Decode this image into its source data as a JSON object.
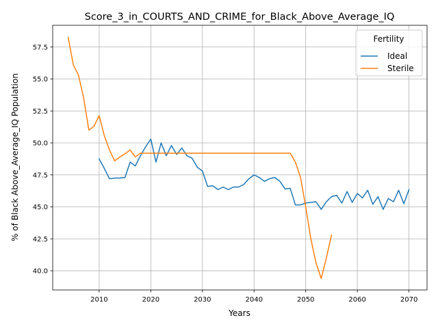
{
  "chart_data": {
    "type": "line",
    "title": "Score_3_in_COURTS_AND_CRIME_for_Black_Above_Average_IQ",
    "xlabel": "Years",
    "ylabel": "% of Black Above_Average_IQ Population",
    "xlim": [
      2001,
      2073.5
    ],
    "ylim": [
      38.5,
      59.2
    ],
    "x_ticks": [
      2010,
      2020,
      2030,
      2040,
      2050,
      2060,
      2070
    ],
    "y_ticks": [
      40.0,
      42.5,
      45.0,
      47.5,
      50.0,
      52.5,
      55.0,
      57.5
    ],
    "x_tick_labels": [
      "2010",
      "2020",
      "2030",
      "2040",
      "2050",
      "2060",
      "2070"
    ],
    "y_tick_labels": [
      "40.0",
      "42.5",
      "45.0",
      "47.5",
      "50.0",
      "52.5",
      "55.0",
      "57.5"
    ],
    "grid": true,
    "legend": {
      "title": "Fertility",
      "placement": "top-right"
    },
    "series": [
      {
        "name": "Ideal",
        "color": "#1f77b4",
        "x": [
          2010,
          2011,
          2012,
          2013,
          2014,
          2015,
          2016,
          2017,
          2018,
          2019,
          2020,
          2021,
          2022,
          2023,
          2024,
          2025,
          2026,
          2027,
          2028,
          2029,
          2030,
          2031,
          2032,
          2033,
          2034,
          2035,
          2036,
          2037,
          2038,
          2039,
          2040,
          2041,
          2042,
          2043,
          2044,
          2045,
          2046,
          2047,
          2048,
          2049,
          2050,
          2051,
          2052,
          2053,
          2054,
          2055,
          2056,
          2057,
          2058,
          2059,
          2060,
          2061,
          2062,
          2063,
          2064,
          2065,
          2066,
          2067,
          2068,
          2069,
          2070
        ],
        "y": [
          48.75,
          48.0,
          47.2,
          47.25,
          47.25,
          47.3,
          48.5,
          48.2,
          49.0,
          49.7,
          50.3,
          48.5,
          50.0,
          49.0,
          49.8,
          49.1,
          49.6,
          49.0,
          48.8,
          48.1,
          47.8,
          46.6,
          46.65,
          46.35,
          46.55,
          46.35,
          46.55,
          46.55,
          46.75,
          47.2,
          47.5,
          47.3,
          47.0,
          47.2,
          47.3,
          47.0,
          46.4,
          46.45,
          45.15,
          45.15,
          45.3,
          45.35,
          45.4,
          44.8,
          45.4,
          45.8,
          45.9,
          45.3,
          46.2,
          45.35,
          46.05,
          45.7,
          46.3,
          45.2,
          45.8,
          44.8,
          45.65,
          45.4,
          46.3,
          45.25,
          46.35
        ]
      },
      {
        "name": "Sterile",
        "color": "#ff7f0e",
        "x": [
          2004,
          2005,
          2006,
          2007,
          2008,
          2009,
          2010,
          2011,
          2012,
          2013,
          2014,
          2015,
          2016,
          2017,
          2018,
          2019,
          2020,
          2021,
          2022,
          2023,
          2024,
          2025,
          2026,
          2027,
          2028,
          2029,
          2030,
          2031,
          2032,
          2033,
          2034,
          2035,
          2036,
          2037,
          2038,
          2039,
          2040,
          2041,
          2042,
          2043,
          2044,
          2045,
          2046,
          2047,
          2048,
          2049,
          2050,
          2051,
          2052,
          2053,
          2054,
          2055
        ],
        "y": [
          58.25,
          56.1,
          55.3,
          53.5,
          51.0,
          51.3,
          52.15,
          50.55,
          49.45,
          48.6,
          48.9,
          49.15,
          49.45,
          48.9,
          49.2,
          49.2,
          49.2,
          49.2,
          49.2,
          49.2,
          49.2,
          49.2,
          49.2,
          49.2,
          49.2,
          49.2,
          49.2,
          49.2,
          49.2,
          49.2,
          49.2,
          49.2,
          49.2,
          49.2,
          49.2,
          49.2,
          49.2,
          49.2,
          49.2,
          49.2,
          49.2,
          49.2,
          49.2,
          49.2,
          48.5,
          47.3,
          45.0,
          42.5,
          40.6,
          39.4,
          41.0,
          42.8
        ]
      }
    ]
  }
}
